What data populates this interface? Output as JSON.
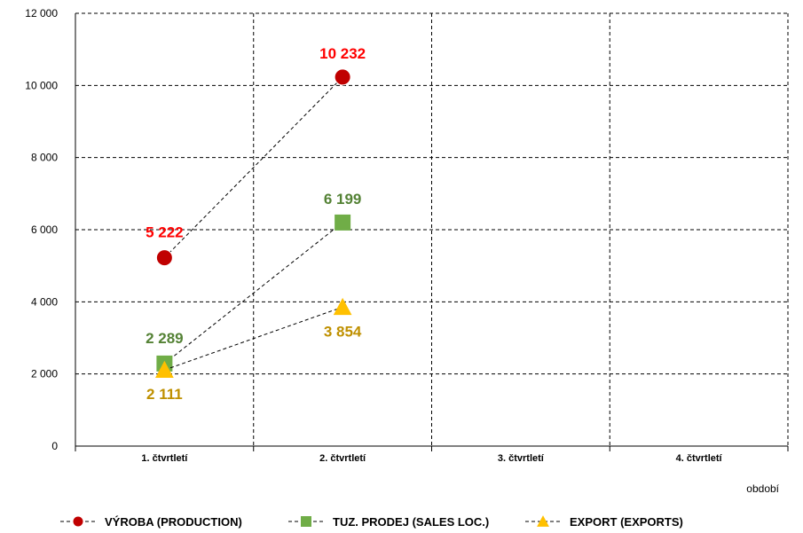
{
  "chart_data": {
    "type": "line",
    "categories": [
      "1. čtvrtletí",
      "2. čtvrtletí",
      "3. čtvrtletí",
      "4. čtvrtletí"
    ],
    "xlabel": "období",
    "ylim": [
      0,
      12000
    ],
    "yticks": [
      0,
      2000,
      4000,
      6000,
      8000,
      10000,
      12000
    ],
    "ytick_labels": [
      "0",
      "2 000",
      "4 000",
      "6 000",
      "8 000",
      "10 000",
      "12 000"
    ],
    "grid": true,
    "legend_position": "bottom",
    "series": [
      {
        "name": "VÝROBA (PRODUCTION)",
        "marker": "circle",
        "color": "#c00000",
        "label_color": "#ff0000",
        "values": [
          5222,
          10232,
          null,
          null
        ],
        "data_labels": [
          "5 222",
          "10 232"
        ]
      },
      {
        "name": "TUZ. PRODEJ (SALES LOC.)",
        "marker": "square",
        "color": "#70ad47",
        "label_color": "#548235",
        "values": [
          2289,
          6199,
          null,
          null
        ],
        "data_labels": [
          "2 289",
          "6 199"
        ]
      },
      {
        "name": "EXPORT (EXPORTS)",
        "marker": "triangle",
        "color": "#ffc000",
        "label_color": "#bf9000",
        "values": [
          2111,
          3854,
          null,
          null
        ],
        "data_labels": [
          "2 111",
          "3 854"
        ]
      }
    ]
  }
}
